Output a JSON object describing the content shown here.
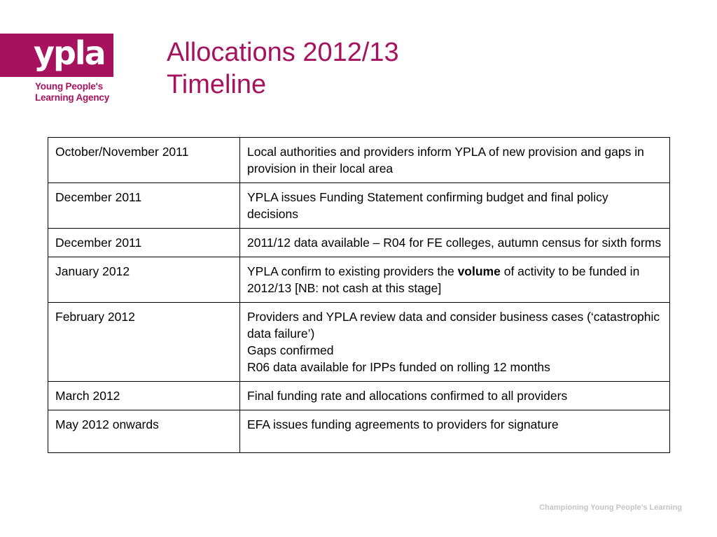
{
  "logo": {
    "wordmark": "ypla",
    "line1": "Young People's",
    "line2": "Learning Agency"
  },
  "title": {
    "line1": "Allocations 2012/13",
    "line2": "Timeline"
  },
  "rows": [
    {
      "date": "October/November 2011",
      "lines": [
        "Local authorities and providers inform YPLA of new provision and gaps in provision in their local area"
      ]
    },
    {
      "date": "December 2011",
      "lines": [
        "YPLA issues Funding Statement confirming budget and final policy decisions"
      ]
    },
    {
      "date": "December 2011",
      "lines": [
        "2011/12 data available – R04 for FE colleges, autumn census for sixth forms"
      ]
    },
    {
      "date": "January 2012",
      "pre": "YPLA confirm to existing providers the ",
      "bold": "volume",
      "post": " of activity to be funded in 2012/13 [NB: not cash at this stage]"
    },
    {
      "date": "February 2012",
      "lines": [
        "Providers and YPLA review data and consider business cases (‘catastrophic data failure’)",
        "Gaps confirmed",
        "R06 data available for IPPs funded on rolling 12 months"
      ]
    },
    {
      "date": "March 2012",
      "lines": [
        "Final funding rate and allocations confirmed to all providers"
      ]
    },
    {
      "date": "May 2012 onwards",
      "lines": [
        "EFA issues funding agreements to providers for signature"
      ]
    }
  ],
  "footer": "Championing Young People’s Learning",
  "colors": {
    "brand": "#a6125e",
    "footer": "#c4c4c4"
  }
}
